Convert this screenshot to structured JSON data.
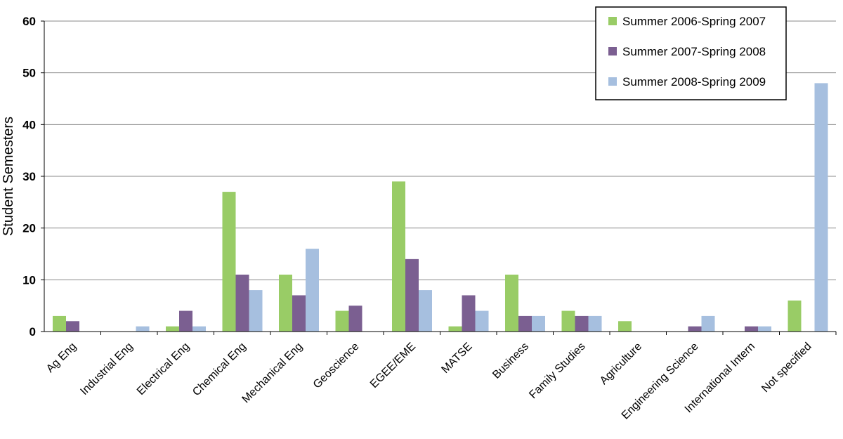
{
  "chart_data": {
    "type": "bar",
    "title": "",
    "xlabel": "",
    "ylabel": "Student Semesters",
    "ylim": [
      0,
      60
    ],
    "yticks": [
      0,
      10,
      20,
      30,
      40,
      50,
      60
    ],
    "grid": true,
    "legend_position": "top-right",
    "categories": [
      "Ag Eng",
      "Industrial Eng",
      "Electrical Eng",
      "Chemical Eng",
      "Mechanical Eng",
      "Geoscience",
      "EGEE/EME",
      "MATSE",
      "Business",
      "Family Studies",
      "Agriculture",
      "Engineering Science",
      "International Intern",
      "Not specified"
    ],
    "series": [
      {
        "name": "Summer 2006-Spring 2007",
        "color": "#99cc66",
        "values": [
          3,
          0,
          1,
          27,
          11,
          4,
          29,
          1,
          11,
          4,
          2,
          0,
          0,
          6
        ]
      },
      {
        "name": "Summer 2007-Spring 2008",
        "color": "#7b5f91",
        "values": [
          2,
          0,
          4,
          11,
          7,
          5,
          14,
          7,
          3,
          3,
          0,
          1,
          1,
          0
        ]
      },
      {
        "name": "Summer 2008-Spring 2009",
        "color": "#a6bfdf",
        "values": [
          0,
          1,
          1,
          8,
          16,
          0,
          8,
          4,
          3,
          3,
          0,
          3,
          1,
          48
        ]
      }
    ]
  }
}
